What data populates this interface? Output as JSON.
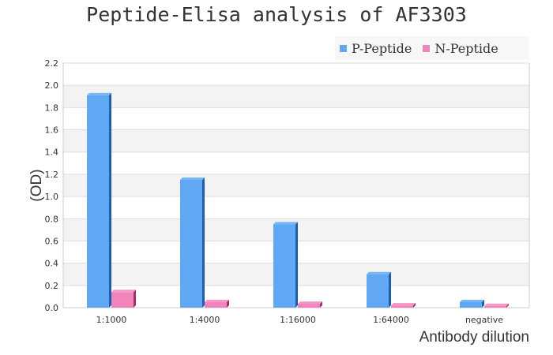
{
  "chart_data": {
    "type": "bar",
    "title": "Peptide-Elisa analysis of AF3303",
    "xlabel": "Antibody dilution",
    "ylabel": "(OD)",
    "categories": [
      "1:1000",
      "1:4000",
      "1:16000",
      "1:64000",
      "negative"
    ],
    "series": [
      {
        "name": "P-Peptide",
        "color": "#60a8f4",
        "side": "#1a5fb0",
        "values": [
          1.91,
          1.15,
          0.75,
          0.3,
          0.05
        ]
      },
      {
        "name": "N-Peptide",
        "color": "#f284bc",
        "side": "#a0306a",
        "values": [
          0.14,
          0.05,
          0.035,
          0.02,
          0.015
        ]
      }
    ],
    "ylim": [
      0,
      2.2
    ],
    "yticks": [
      "0.0",
      "0.2",
      "0.4",
      "0.6",
      "0.8",
      "1.0",
      "1.2",
      "1.4",
      "1.6",
      "1.8",
      "2.0",
      "2.2"
    ],
    "grid": true,
    "legend": "top-right"
  }
}
